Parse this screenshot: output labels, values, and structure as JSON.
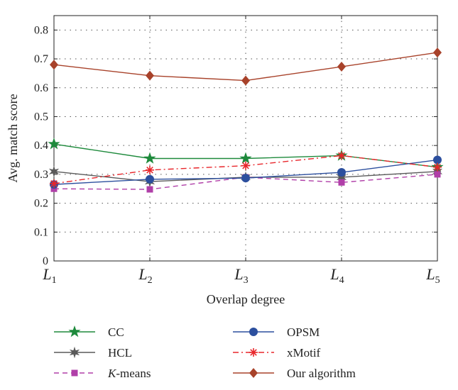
{
  "chart_data": {
    "type": "line",
    "xlabel": "Overlap degree",
    "ylabel": "Avg. match score",
    "x_ticks": [
      {
        "main": "L",
        "sub": "1"
      },
      {
        "main": "L",
        "sub": "2"
      },
      {
        "main": "L",
        "sub": "3"
      },
      {
        "main": "L",
        "sub": "4"
      },
      {
        "main": "L",
        "sub": "5"
      }
    ],
    "ylim": [
      0,
      0.85
    ],
    "y_ticks": [
      0,
      0.1,
      0.2,
      0.3,
      0.4,
      0.5,
      0.6,
      0.7,
      0.8
    ],
    "y_tick_labels": [
      "0",
      "0.1",
      "0.2",
      "0.3",
      "0.4",
      "0.5",
      "0.6",
      "0.7",
      "0.8"
    ],
    "grid": true,
    "legend_position": "bottom",
    "series": [
      {
        "name": "CC",
        "label_prefix": "",
        "label_italic": "",
        "label_rest": "CC",
        "color": "#1e8a3c",
        "marker": "star",
        "dash": "solid",
        "values": [
          0.405,
          0.355,
          0.355,
          0.365,
          0.325
        ]
      },
      {
        "name": "HCL",
        "label_prefix": "",
        "label_italic": "",
        "label_rest": "HCL",
        "color": "#5a5a5a",
        "marker": "star6",
        "dash": "solid",
        "values": [
          0.31,
          0.275,
          0.29,
          0.29,
          0.31
        ]
      },
      {
        "name": "K-means",
        "label_prefix": "",
        "label_italic": "K",
        "label_rest": "-means",
        "color": "#b03fa8",
        "marker": "square",
        "dash": "dashed",
        "values": [
          0.25,
          0.248,
          0.29,
          0.272,
          0.3
        ]
      },
      {
        "name": "OPSM",
        "label_prefix": "",
        "label_italic": "",
        "label_rest": "OPSM",
        "color": "#2c4f9e",
        "marker": "circle",
        "dash": "solid",
        "values": [
          0.265,
          0.283,
          0.287,
          0.307,
          0.35
        ]
      },
      {
        "name": "xMotif",
        "label_prefix": "",
        "label_italic": "",
        "label_rest": "xMotif",
        "color": "#e8262b",
        "marker": "asterisk",
        "dash": "dashdot",
        "values": [
          0.268,
          0.315,
          0.33,
          0.365,
          0.325
        ]
      },
      {
        "name": "Our algorithm",
        "label_prefix": "",
        "label_italic": "",
        "label_rest": "Our algorithm",
        "color": "#a8422a",
        "marker": "diamond",
        "dash": "solid",
        "values": [
          0.68,
          0.642,
          0.625,
          0.673,
          0.722
        ]
      }
    ]
  }
}
